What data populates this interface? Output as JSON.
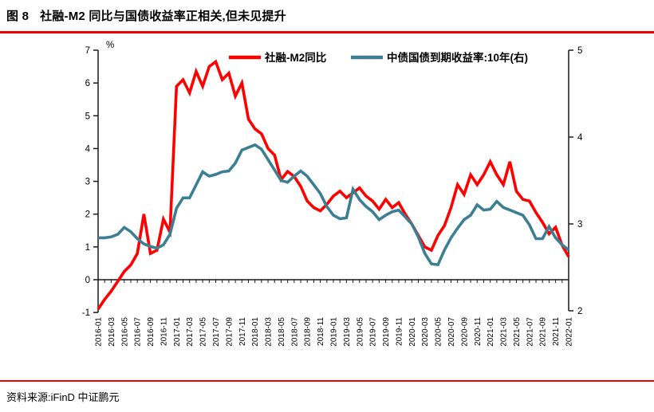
{
  "header": {
    "figure_label": "图 8",
    "title": "社融-M2 同比与国债收益率正相关,但未见提升"
  },
  "source": {
    "label": "资料来源:iFinD  中证鹏元"
  },
  "colors": {
    "accent_rule_red": "#ee0000",
    "series_red": "#ff0000",
    "series_teal": "#3d7f92",
    "axis_black": "#1a1a1a"
  },
  "chart_data": {
    "type": "line",
    "title": "社融-M2 同比与国债收益率正相关,但未见提升",
    "legend_position": "top",
    "grid": false,
    "x": [
      "2016-01",
      "2016-02",
      "2016-03",
      "2016-04",
      "2016-05",
      "2016-06",
      "2016-07",
      "2016-08",
      "2016-09",
      "2016-10",
      "2016-11",
      "2016-12",
      "2017-01",
      "2017-02",
      "2017-03",
      "2017-04",
      "2017-05",
      "2017-06",
      "2017-07",
      "2017-08",
      "2017-09",
      "2017-10",
      "2017-11",
      "2017-12",
      "2018-01",
      "2018-02",
      "2018-03",
      "2018-04",
      "2018-05",
      "2018-06",
      "2018-07",
      "2018-08",
      "2018-09",
      "2018-10",
      "2018-11",
      "2018-12",
      "2019-01",
      "2019-02",
      "2019-03",
      "2019-04",
      "2019-05",
      "2019-06",
      "2019-07",
      "2019-08",
      "2019-09",
      "2019-10",
      "2019-11",
      "2019-12",
      "2020-01",
      "2020-02",
      "2020-03",
      "2020-04",
      "2020-05",
      "2020-06",
      "2020-07",
      "2020-08",
      "2020-09",
      "2020-10",
      "2020-11",
      "2020-12",
      "2021-01",
      "2021-02",
      "2021-03",
      "2021-04",
      "2021-05",
      "2021-06",
      "2021-07",
      "2021-08",
      "2021-09",
      "2021-10",
      "2021-11",
      "2021-12",
      "2022-01"
    ],
    "x_label_every": 2,
    "left_axis": {
      "label": "%",
      "min": -1,
      "max": 7,
      "ticks": [
        7,
        6,
        5,
        4,
        3,
        2,
        1,
        0,
        -1
      ]
    },
    "right_axis": {
      "min": 2,
      "max": 5,
      "ticks": [
        5,
        4,
        3,
        2
      ]
    },
    "series": [
      {
        "name": "社融-M2同比",
        "axis": "left",
        "color": "#ff0000",
        "values": [
          -0.9,
          -0.6,
          -0.35,
          -0.05,
          0.25,
          0.45,
          0.8,
          2.0,
          0.8,
          0.9,
          1.85,
          1.45,
          5.9,
          6.1,
          5.7,
          6.35,
          5.9,
          6.5,
          6.65,
          6.1,
          6.3,
          5.6,
          6.0,
          4.9,
          4.6,
          4.45,
          4.0,
          3.8,
          3.05,
          3.3,
          3.15,
          2.85,
          2.4,
          2.2,
          2.1,
          2.3,
          2.55,
          2.7,
          2.5,
          2.65,
          2.8,
          2.55,
          2.4,
          2.15,
          2.45,
          2.2,
          2.35,
          2.0,
          1.7,
          1.35,
          1.0,
          0.9,
          1.35,
          1.65,
          2.2,
          2.9,
          2.6,
          3.2,
          2.9,
          3.2,
          3.6,
          3.2,
          2.9,
          3.6,
          2.7,
          2.45,
          2.4,
          2.05,
          1.75,
          1.4,
          1.6,
          1.05,
          0.7
        ]
      },
      {
        "name": "中债国债到期收益率:10年(右)",
        "axis": "right",
        "color": "#3d7f92",
        "values": [
          2.84,
          2.84,
          2.85,
          2.88,
          2.96,
          2.91,
          2.83,
          2.77,
          2.74,
          2.72,
          2.76,
          2.88,
          3.18,
          3.3,
          3.3,
          3.45,
          3.6,
          3.55,
          3.57,
          3.6,
          3.61,
          3.7,
          3.85,
          3.88,
          3.91,
          3.86,
          3.74,
          3.62,
          3.5,
          3.48,
          3.55,
          3.61,
          3.55,
          3.45,
          3.35,
          3.2,
          3.1,
          3.06,
          3.07,
          3.4,
          3.28,
          3.2,
          3.14,
          3.05,
          3.1,
          3.14,
          3.16,
          3.08,
          3.0,
          2.85,
          2.66,
          2.54,
          2.53,
          2.7,
          2.84,
          2.95,
          3.05,
          3.1,
          3.22,
          3.16,
          3.17,
          3.26,
          3.19,
          3.16,
          3.13,
          3.1,
          2.99,
          2.83,
          2.83,
          2.97,
          2.84,
          2.76,
          2.7
        ]
      }
    ]
  }
}
